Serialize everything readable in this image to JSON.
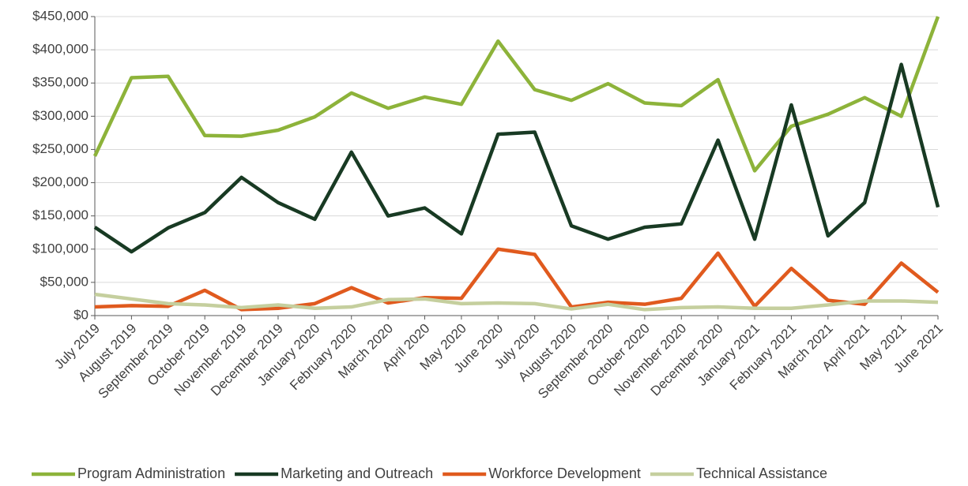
{
  "chart_data": {
    "type": "line",
    "categories": [
      "July 2019",
      "August 2019",
      "September 2019",
      "October 2019",
      "November 2019",
      "December 2019",
      "January 2020",
      "February 2020",
      "March 2020",
      "April 2020",
      "May 2020",
      "June 2020",
      "July 2020",
      "August 2020",
      "September 2020",
      "October 2020",
      "November 2020",
      "December 2020",
      "January 2021",
      "February 2021",
      "March 2021",
      "April 2021",
      "May 2021",
      "June 2021"
    ],
    "series": [
      {
        "name": "Program Administration",
        "color": "#8db33a",
        "values": [
          240000,
          358000,
          360000,
          271000,
          270000,
          279000,
          299000,
          335000,
          312000,
          329000,
          318000,
          413000,
          340000,
          324000,
          349000,
          320000,
          316000,
          355000,
          218000,
          285000,
          303000,
          328000,
          300000,
          450000
        ]
      },
      {
        "name": "Marketing and Outreach",
        "color": "#183a23",
        "values": [
          133000,
          96000,
          132000,
          155000,
          208000,
          170000,
          145000,
          246000,
          150000,
          162000,
          123000,
          273000,
          276000,
          135000,
          115000,
          133000,
          138000,
          264000,
          115000,
          317000,
          120000,
          170000,
          378000,
          163000
        ]
      },
      {
        "name": "Workforce Development",
        "color": "#e05a1e",
        "values": [
          13000,
          15000,
          14000,
          38000,
          9000,
          11000,
          18000,
          42000,
          19000,
          27000,
          26000,
          100000,
          92000,
          13000,
          20000,
          17000,
          26000,
          94000,
          14000,
          71000,
          23000,
          17000,
          79000,
          35000
        ]
      },
      {
        "name": "Technical Assistance",
        "color": "#c5cf9e",
        "values": [
          32000,
          25000,
          18000,
          16000,
          12000,
          16000,
          11000,
          13000,
          24000,
          25000,
          18000,
          19000,
          18000,
          10000,
          17000,
          9000,
          12000,
          13000,
          11000,
          11000,
          16000,
          22000,
          22000,
          20000
        ]
      }
    ],
    "ylim": [
      0,
      450000
    ],
    "yticks": [
      {
        "value": 0,
        "label": "$0"
      },
      {
        "value": 50000,
        "label": "$50,000"
      },
      {
        "value": 100000,
        "label": "$100,000"
      },
      {
        "value": 150000,
        "label": "$150,000"
      },
      {
        "value": 200000,
        "label": "$200,000"
      },
      {
        "value": 250000,
        "label": "$250,000"
      },
      {
        "value": 300000,
        "label": "$300,000"
      },
      {
        "value": 350000,
        "label": "$350,000"
      },
      {
        "value": 400000,
        "label": "$400,000"
      },
      {
        "value": 450000,
        "label": "$450,000"
      }
    ],
    "grid": true,
    "legend": "bottom"
  }
}
